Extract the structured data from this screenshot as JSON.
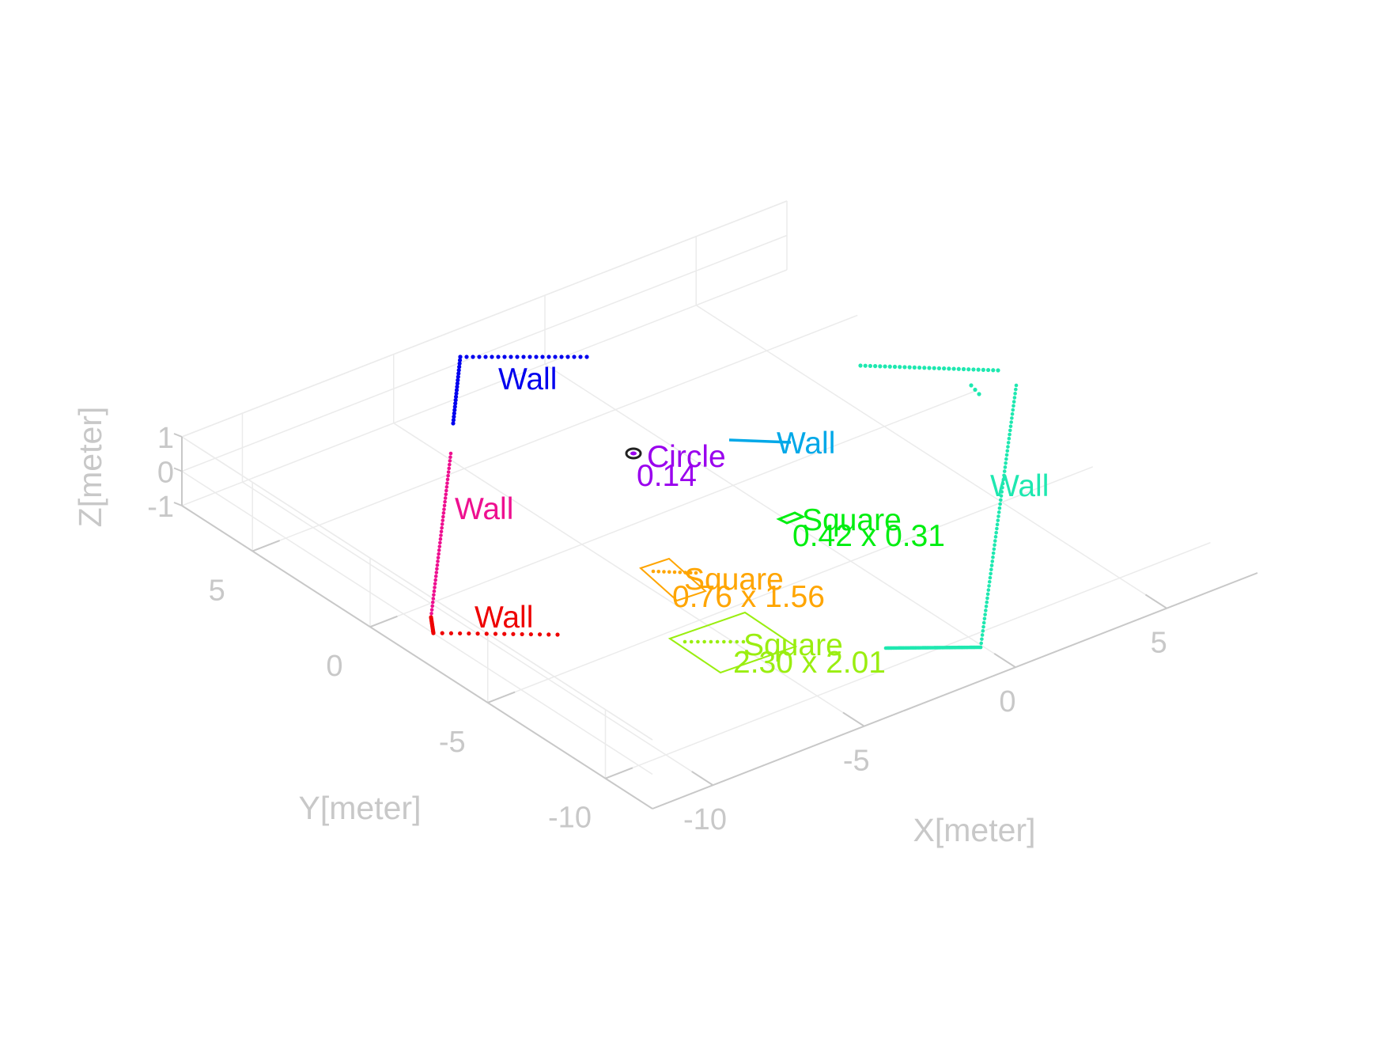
{
  "chart_data": {
    "type": "scatter",
    "projection": "3d",
    "grid": true,
    "xlabel": "X[meter]",
    "ylabel": "Y[meter]",
    "zlabel": "Z[meter]",
    "xticks": [
      -10,
      -5,
      0,
      5
    ],
    "yticks": [
      -10,
      -5,
      0,
      5
    ],
    "zticks": [
      -1,
      0,
      1
    ],
    "xtick_labels": [
      "-10",
      "-5",
      "0",
      "5"
    ],
    "ytick_labels": [
      "-10",
      "-5",
      "0",
      "5"
    ],
    "ztick_labels": [
      "-1",
      "0",
      "1"
    ],
    "xlim": [
      -12,
      8
    ],
    "ylim": [
      -12,
      8
    ],
    "zlim": [
      -1,
      1
    ],
    "objects": [
      {
        "label": "Wall",
        "detail": "",
        "kind": "wall",
        "color": "#0000ee"
      },
      {
        "label": "Wall",
        "detail": "",
        "kind": "wall",
        "color": "#00a8e8"
      },
      {
        "label": "Wall",
        "detail": "",
        "kind": "wall",
        "color": "#1ee8b0"
      },
      {
        "label": "Wall",
        "detail": "",
        "kind": "wall",
        "color": "#ee1090"
      },
      {
        "label": "Wall",
        "detail": "",
        "kind": "wall",
        "color": "#ee0000"
      },
      {
        "label": "Circle",
        "detail": "0.14",
        "kind": "circle",
        "color": "#9a00ee"
      },
      {
        "label": "Square",
        "detail": "0.42 x 0.31",
        "kind": "square",
        "color": "#00ee10"
      },
      {
        "label": "Square",
        "detail": "0.76 x 1.56",
        "kind": "square",
        "color": "#ffa500"
      },
      {
        "label": "Square",
        "detail": "2.30 x 2.01",
        "kind": "square",
        "color": "#9aee10"
      }
    ]
  }
}
